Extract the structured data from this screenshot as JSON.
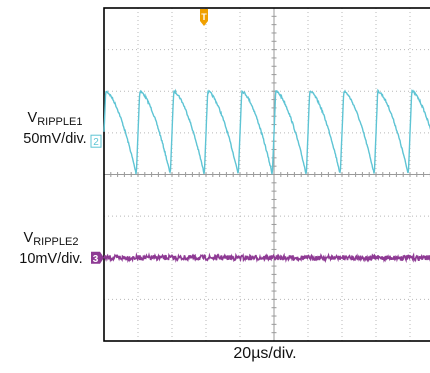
{
  "chart_data": {
    "type": "line",
    "x_unit_per_div": "20µs/div",
    "grid": true,
    "divisions": {
      "x": 10,
      "y": 8
    },
    "series": [
      {
        "name": "VRIPPLE1",
        "label_main": "V",
        "label_sub": "RIPPLE1",
        "scale": "50mV/div.",
        "marker": "2",
        "color": "#5ec4d4",
        "shape": "sawtooth",
        "period_div": 1.0,
        "first_peak_div": 0.05,
        "peak_level_div": 2.0,
        "trough_level_div": 0.0
      },
      {
        "name": "VRIPPLE2",
        "label_main": "V",
        "label_sub": "RIPPLE2",
        "scale": "10mV/div.",
        "marker": "3",
        "color": "#8e3a94",
        "shape": "flat-noise",
        "level_div": -2.0
      }
    ],
    "trigger_marker": {
      "label": "T",
      "color": "#f0a000"
    },
    "xlabel": "20µs/div."
  }
}
